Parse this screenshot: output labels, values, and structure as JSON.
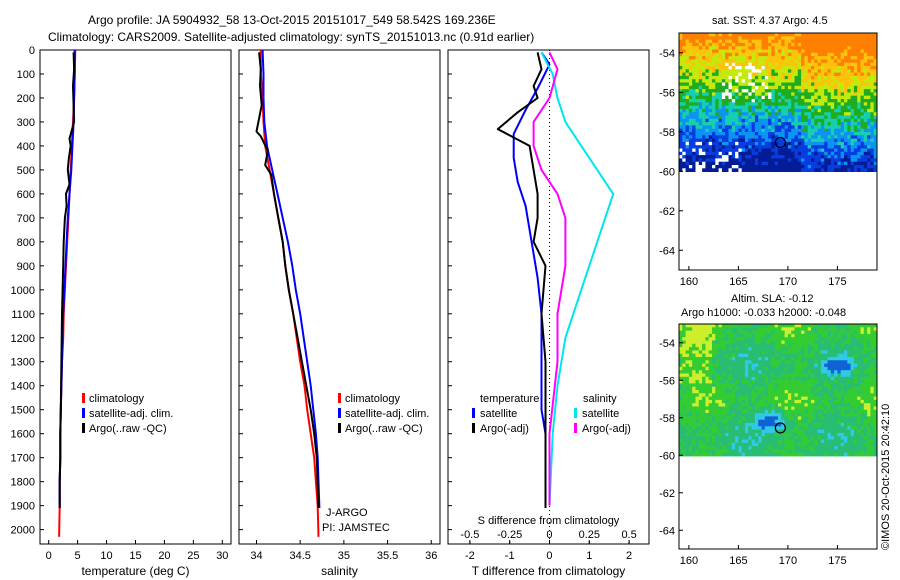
{
  "header": {
    "line1": "Argo profile: JA 5904932_58 13-Oct-2015 20151017_549 58.542S 169.236E",
    "line2": "Climatology: CARS2009. Satellite-adjusted climatology: synTS_20151013.nc (0.91d earlier)"
  },
  "colors": {
    "climatology": "#ff0000",
    "satellite": "#0000ff",
    "argo": "#000000",
    "sat_salinity": "#00e5ee",
    "argo_salinity": "#ff00ff"
  },
  "credit": "©IMOS 20-Oct-2015 20:42:10",
  "chart_data": [
    {
      "id": "temperature",
      "type": "line",
      "xlabel": "temperature (deg C)",
      "ylabel": "",
      "xlim": [
        -1.5,
        31.5
      ],
      "ylim": [
        2060,
        0
      ],
      "xticks": [
        0,
        5,
        10,
        15,
        20,
        25,
        30
      ],
      "yticks": [
        0,
        100,
        200,
        300,
        400,
        500,
        600,
        700,
        800,
        900,
        1000,
        1100,
        1200,
        1300,
        1400,
        1500,
        1600,
        1700,
        1800,
        1900,
        2000
      ],
      "legend": [
        "climatology",
        "satellite-adj. clim.",
        "Argo(..raw -QC)"
      ],
      "series": [
        {
          "name": "climatology",
          "color": "#ff0000",
          "x": [
            4.6,
            4.5,
            4.4,
            4.2,
            4.0,
            3.8,
            3.6,
            3.4,
            3.2,
            3.0,
            2.8,
            2.6,
            2.5,
            2.3,
            2.2,
            2.1,
            2.0,
            2.0,
            1.9,
            1.9,
            1.8
          ],
          "y": [
            0,
            100,
            200,
            300,
            400,
            500,
            600,
            700,
            800,
            900,
            1000,
            1100,
            1200,
            1300,
            1400,
            1500,
            1600,
            1700,
            1800,
            1900,
            2030
          ]
        },
        {
          "name": "satellite-adj. clim.",
          "color": "#0000ff",
          "x": [
            4.5,
            4.5,
            4.4,
            4.3,
            4.1,
            3.9,
            3.6,
            3.3,
            3.1,
            2.9,
            2.7,
            2.5,
            2.4,
            2.3,
            2.2,
            2.1,
            2.0,
            2.0,
            1.9,
            1.9
          ],
          "y": [
            0,
            100,
            200,
            300,
            400,
            500,
            600,
            700,
            800,
            900,
            1000,
            1100,
            1200,
            1300,
            1400,
            1500,
            1600,
            1700,
            1800,
            1910
          ]
        },
        {
          "name": "Argo(..raw -QC)",
          "color": "#000000",
          "x": [
            4.3,
            4.4,
            4.2,
            4.3,
            4.4,
            3.6,
            3.8,
            3.5,
            3.3,
            3.6,
            3.0,
            3.1,
            2.8,
            2.6,
            2.5,
            2.4,
            2.3,
            2.2,
            2.1,
            2.0,
            2.0,
            1.9,
            1.9
          ],
          "y": [
            10,
            80,
            150,
            230,
            300,
            370,
            400,
            450,
            500,
            560,
            600,
            650,
            700,
            800,
            900,
            1000,
            1100,
            1300,
            1500,
            1600,
            1700,
            1800,
            1910
          ]
        }
      ]
    },
    {
      "id": "salinity",
      "type": "line",
      "xlabel": "salinity",
      "ylabel": "",
      "xlim": [
        33.8,
        36.1
      ],
      "ylim": [
        2060,
        0
      ],
      "xticks": [
        34,
        34.5,
        35,
        35.5,
        36
      ],
      "xtick_labels": [
        "34",
        "34.5",
        "35",
        "35.5",
        "36"
      ],
      "legend": [
        "climatology",
        "satellite-adj. clim.",
        "Argo(..raw -QC)"
      ],
      "annotation": [
        "J-ARGO",
        "PI: JAMSTEC"
      ],
      "series": [
        {
          "name": "climatology",
          "color": "#ff0000",
          "x": [
            34.05,
            34.05,
            34.07,
            34.08,
            34.1,
            34.15,
            34.2,
            34.25,
            34.3,
            34.33,
            34.37,
            34.42,
            34.46,
            34.5,
            34.55,
            34.58,
            34.62,
            34.66,
            34.68,
            34.7,
            34.71
          ],
          "y": [
            0,
            100,
            200,
            300,
            400,
            500,
            600,
            700,
            800,
            900,
            1000,
            1100,
            1200,
            1300,
            1400,
            1500,
            1600,
            1700,
            1800,
            1900,
            2030
          ]
        },
        {
          "name": "satellite-adj. clim.",
          "color": "#0000ff",
          "x": [
            34.07,
            34.08,
            34.08,
            34.09,
            34.12,
            34.18,
            34.24,
            34.3,
            34.36,
            34.41,
            34.45,
            34.5,
            34.54,
            34.58,
            34.62,
            34.65,
            34.68,
            34.7,
            34.71,
            34.72
          ],
          "y": [
            0,
            100,
            200,
            300,
            400,
            500,
            600,
            700,
            800,
            900,
            1000,
            1100,
            1200,
            1300,
            1400,
            1500,
            1600,
            1700,
            1800,
            1910
          ]
        },
        {
          "name": "Argo(..raw -QC)",
          "color": "#000000",
          "x": [
            34.03,
            34.05,
            34.04,
            34.06,
            34.0,
            34.05,
            34.13,
            34.1,
            34.17,
            34.2,
            34.25,
            34.3,
            34.33,
            34.37,
            34.42,
            34.47,
            34.52,
            34.57,
            34.62,
            34.66,
            34.69,
            34.71
          ],
          "y": [
            10,
            80,
            150,
            230,
            340,
            360,
            420,
            480,
            520,
            600,
            700,
            800,
            900,
            1000,
            1100,
            1200,
            1300,
            1400,
            1500,
            1600,
            1700,
            1910
          ]
        }
      ]
    },
    {
      "id": "difference",
      "type": "line",
      "xlabel": "T difference from climatology",
      "x2label": "S difference from climatology",
      "ylabel": "",
      "xlim": [
        -2.55,
        2.5
      ],
      "ylim": [
        2060,
        0
      ],
      "xticks": [
        -2,
        -1,
        0,
        1,
        2
      ],
      "x2ticks": [
        -0.5,
        -0.25,
        0,
        0.25,
        0.5
      ],
      "x2tick_labels": [
        "-0.5",
        "-0.25",
        "0",
        "0.25",
        "0.5"
      ],
      "legend_temperature": {
        "title": "temperature",
        "items": [
          "satellite",
          "Argo(-adj)"
        ]
      },
      "legend_salinity": {
        "title": "salinity",
        "items": [
          "satellite",
          "Argo(-adj)"
        ]
      },
      "series": [
        {
          "name": "satellite",
          "group": "temperature",
          "color": "#0000ff",
          "x": [
            -0.2,
            0.0,
            -0.3,
            -0.6,
            -0.9,
            -0.9,
            -0.8,
            -0.6,
            -0.5,
            -0.4,
            -0.3,
            -0.2,
            -0.2,
            -0.2,
            -0.1,
            -0.1,
            -0.1,
            -0.1
          ],
          "y": [
            10,
            60,
            160,
            250,
            350,
            450,
            550,
            650,
            750,
            850,
            950,
            1100,
            1300,
            1500,
            1600,
            1700,
            1800,
            1910
          ]
        },
        {
          "name": "Argo(-adj)",
          "group": "temperature",
          "color": "#000000",
          "x": [
            -0.3,
            -0.2,
            -0.4,
            -0.3,
            -0.8,
            -1.3,
            -0.5,
            -0.3,
            -0.3,
            -0.4,
            -0.1,
            -0.2,
            -0.1,
            -0.1,
            -0.1,
            -0.1
          ],
          "y": [
            10,
            80,
            150,
            200,
            260,
            330,
            400,
            600,
            700,
            800,
            900,
            1100,
            1300,
            1500,
            1700,
            1910
          ]
        },
        {
          "name": "satellite",
          "group": "salinity",
          "color": "#00e5ee",
          "x": [
            -0.05,
            0.02,
            0.05,
            0.1,
            0.2,
            0.3,
            0.4,
            0.3,
            0.2,
            0.1,
            0.05,
            0.02,
            0.0
          ],
          "y": [
            10,
            100,
            200,
            300,
            400,
            500,
            600,
            800,
            1000,
            1200,
            1400,
            1600,
            1900
          ]
        },
        {
          "name": "Argo(-adj)",
          "group": "salinity",
          "color": "#ff00ff",
          "x": [
            0.0,
            0.05,
            0.0,
            -0.1,
            -0.1,
            -0.05,
            0.05,
            0.1,
            0.1,
            0.05,
            0.05,
            0.0,
            0.0
          ],
          "y": [
            10,
            80,
            200,
            300,
            400,
            500,
            600,
            700,
            900,
            1100,
            1300,
            1600,
            1900
          ]
        }
      ]
    },
    {
      "id": "sst_map",
      "type": "heatmap",
      "title": "sat. SST: 4.37 Argo: 4.5",
      "xlim": [
        159,
        179
      ],
      "ylim": [
        -65,
        -53
      ],
      "xticks": [
        160,
        165,
        170,
        175
      ],
      "yticks": [
        -54,
        -56,
        -58,
        -60,
        -62,
        -64
      ],
      "marker": {
        "lon": 169.236,
        "lat": -58.542
      }
    },
    {
      "id": "sla_map",
      "type": "heatmap",
      "title": "Altim. SLA: -0.12",
      "subtitle": "Argo h1000: -0.033 h2000: -0.048",
      "xlim": [
        159,
        179
      ],
      "ylim": [
        -65,
        -53
      ],
      "xticks": [
        160,
        165,
        170,
        175
      ],
      "yticks": [
        -54,
        -56,
        -58,
        -60,
        -62,
        -64
      ],
      "marker": {
        "lon": 169.236,
        "lat": -58.542
      }
    }
  ]
}
